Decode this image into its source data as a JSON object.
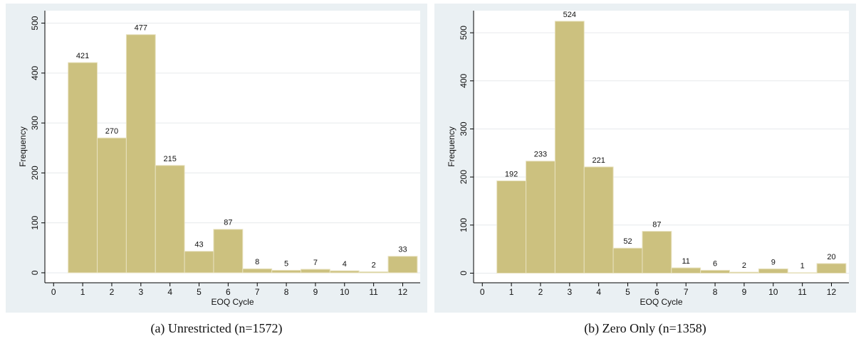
{
  "chart_data": [
    {
      "type": "histogram",
      "caption": "(a) Unrestricted (n=1572)",
      "xlabel": "EOQ Cycle",
      "ylabel": "Frequency",
      "bins": [
        0.5,
        1.5,
        2.5,
        3.5,
        4.5,
        5.5,
        6.5,
        7.5,
        8.5,
        9.5,
        10.5,
        11.5,
        12.5
      ],
      "values": [
        421,
        270,
        477,
        215,
        43,
        87,
        8,
        5,
        7,
        4,
        2,
        33
      ],
      "color": "#ccc17f",
      "xlim": [
        -0.3,
        12.6
      ],
      "xticks": [
        0,
        1,
        2,
        3,
        4,
        5,
        6,
        7,
        8,
        9,
        10,
        11,
        12
      ],
      "ylim": [
        -20,
        525
      ],
      "yticks": [
        0,
        100,
        200,
        300,
        400,
        500
      ],
      "grid": true
    },
    {
      "type": "histogram",
      "caption": "(b) Zero Only (n=1358)",
      "xlabel": "EOQ Cycle",
      "ylabel": "Frequency",
      "bins": [
        0.5,
        1.5,
        2.5,
        3.5,
        4.5,
        5.5,
        6.5,
        7.5,
        8.5,
        9.5,
        10.5,
        11.5,
        12.5
      ],
      "values": [
        192,
        233,
        524,
        221,
        52,
        87,
        11,
        6,
        2,
        9,
        1,
        20
      ],
      "color": "#ccc17f",
      "xlim": [
        -0.3,
        12.6
      ],
      "xticks": [
        0,
        1,
        2,
        3,
        4,
        5,
        6,
        7,
        8,
        9,
        10,
        11,
        12
      ],
      "ylim": [
        -20,
        546
      ],
      "yticks": [
        0,
        100,
        200,
        300,
        400,
        500
      ],
      "grid": true
    }
  ]
}
